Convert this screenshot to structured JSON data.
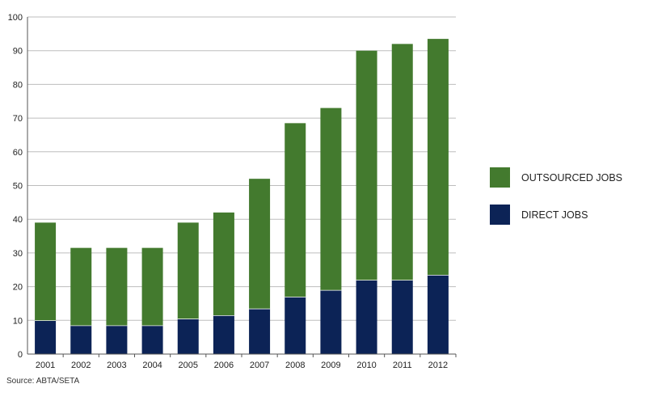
{
  "chart_data": {
    "type": "bar",
    "stacked": true,
    "categories": [
      "2001",
      "2002",
      "2003",
      "2004",
      "2005",
      "2006",
      "2007",
      "2008",
      "2009",
      "2010",
      "2011",
      "2012"
    ],
    "series": [
      {
        "name": "DIRECT JOBS",
        "color": "#0c2356",
        "values": [
          10,
          8.5,
          8.5,
          8.5,
          10.5,
          11.5,
          13.5,
          17,
          19,
          22,
          22,
          23.5
        ]
      },
      {
        "name": "OUTSOURCED JOBS",
        "color": "#437a2e",
        "values": [
          29,
          23,
          23,
          23,
          28.5,
          30.5,
          38.5,
          51.5,
          54,
          68,
          70,
          70
        ]
      }
    ],
    "ylim": [
      0,
      100
    ],
    "yticks": [
      0,
      10,
      20,
      30,
      40,
      50,
      60,
      70,
      80,
      90,
      100
    ],
    "grid": true,
    "legend_position": "right",
    "legend_order": [
      "OUTSOURCED JOBS",
      "DIRECT JOBS"
    ],
    "source": "Source: ABTA/SETA"
  }
}
